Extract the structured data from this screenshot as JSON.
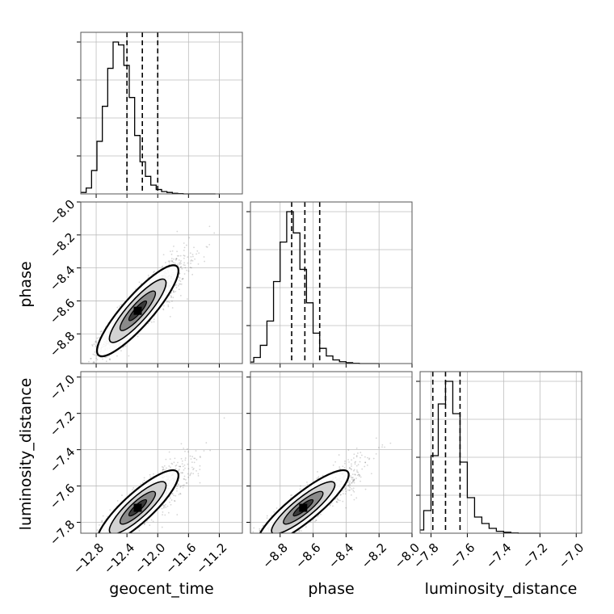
{
  "chart_data": {
    "type": "corner",
    "parameters": [
      "geocent_time",
      "phase",
      "luminosity_distance"
    ],
    "grid": true,
    "ranges": {
      "geocent_time": [
        -13.0,
        -10.9
      ],
      "phase": [
        -8.98,
        -8.0
      ],
      "luminosity_distance": [
        -7.86,
        -6.97
      ]
    },
    "ticks": {
      "geocent_time": [
        -12.8,
        -12.4,
        -12.0,
        -11.6,
        -11.2
      ],
      "phase": [
        -8.8,
        -8.6,
        -8.4,
        -8.2,
        -8.0
      ],
      "luminosity_distance": [
        -7.8,
        -7.6,
        -7.4,
        -7.2,
        -7.0
      ]
    },
    "tick_labels": {
      "geocent_time": [
        "−12.8",
        "−12.4",
        "−12.0",
        "−11.6",
        "−11.2"
      ],
      "phase": [
        "−8.8",
        "−8.6",
        "−8.4",
        "−8.2",
        "−8.0"
      ],
      "luminosity_distance": [
        "−7.8",
        "−7.6",
        "−7.4",
        "−7.2",
        "−7.0"
      ]
    },
    "quantiles": {
      "geocent_time": [
        -12.4,
        -12.2,
        -12.0
      ],
      "phase": [
        -8.73,
        -8.65,
        -8.56
      ],
      "luminosity_distance": [
        -7.79,
        -7.72,
        -7.64
      ]
    },
    "histograms": {
      "geocent_time": {
        "edges": [
          -13.0,
          -12.93,
          -12.86,
          -12.79,
          -12.72,
          -12.65,
          -12.58,
          -12.51,
          -12.44,
          -12.37,
          -12.3,
          -12.23,
          -12.16,
          -12.09,
          -12.02,
          -11.95,
          -11.88,
          -11.81,
          -11.74,
          -11.67,
          -11.6,
          -11.53,
          -11.46,
          -11.39,
          -11.32,
          -11.25
        ],
        "counts": [
          0.5,
          2,
          8,
          18,
          30,
          43,
          52,
          51,
          44,
          33,
          20,
          11,
          6,
          3,
          1.5,
          0.8,
          0.5,
          0.2,
          0.1,
          0,
          0,
          0,
          0,
          0,
          0
        ]
      },
      "phase": {
        "edges": [
          -9.0,
          -8.96,
          -8.92,
          -8.88,
          -8.84,
          -8.8,
          -8.76,
          -8.72,
          -8.68,
          -8.64,
          -8.6,
          -8.56,
          -8.52,
          -8.48,
          -8.44,
          -8.4,
          -8.36,
          -8.32,
          -8.28,
          -8.24,
          -8.2
        ],
        "counts": [
          0.5,
          2,
          6,
          14,
          27,
          40,
          50,
          43,
          31,
          20,
          10,
          5,
          2.5,
          1.2,
          0.6,
          0.3,
          0.1,
          0,
          0,
          0
        ]
      },
      "luminosity_distance": {
        "edges": [
          -7.88,
          -7.84,
          -7.8,
          -7.76,
          -7.72,
          -7.68,
          -7.64,
          -7.6,
          -7.56,
          -7.52,
          -7.48,
          -7.44,
          -7.4,
          -7.36,
          -7.32,
          -7.28,
          -7.24,
          -7.2
        ],
        "counts": [
          1,
          7,
          24,
          40,
          47,
          37,
          22,
          11,
          5,
          3,
          1.5,
          0.6,
          0.3,
          0.1,
          0,
          0,
          0
        ]
      }
    },
    "pairs": [
      {
        "x": "geocent_time",
        "y": "phase",
        "mean": [
          -12.26,
          -8.66
        ],
        "sd": [
          0.23,
          0.12
        ],
        "corr": 0.88
      },
      {
        "x": "geocent_time",
        "y": "luminosity_distance",
        "mean": [
          -12.26,
          -7.72
        ],
        "sd": [
          0.23,
          0.09
        ],
        "corr": 0.86
      },
      {
        "x": "phase",
        "y": "luminosity_distance",
        "mean": [
          -8.66,
          -7.72
        ],
        "sd": [
          0.12,
          0.09
        ],
        "corr": 0.88
      }
    ],
    "xlabels": [
      "geocent_time",
      "phase",
      "luminosity_distance"
    ],
    "ylabels": [
      "",
      "phase",
      "luminosity_distance"
    ]
  }
}
